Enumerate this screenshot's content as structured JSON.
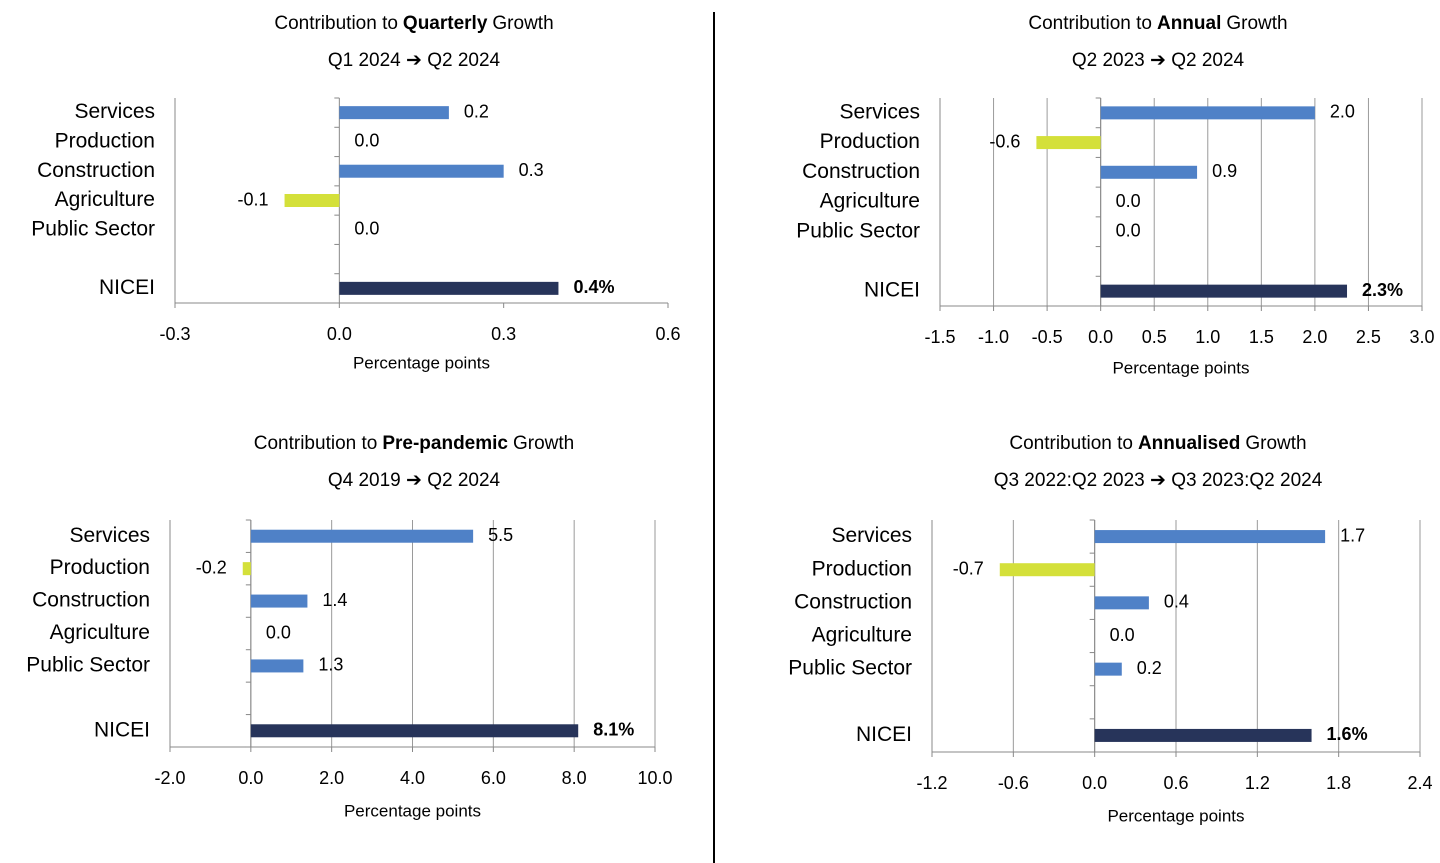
{
  "chart_data": [
    {
      "type": "bar",
      "orientation": "horizontal",
      "title_parts": [
        "Contribution to",
        "Quarterly",
        "Growth"
      ],
      "subtitle": "Q1 2024 ➔ Q2 2024",
      "categories": [
        "Services",
        "Production",
        "Construction",
        "Agriculture",
        "Public Sector",
        null,
        "NICEI"
      ],
      "values": [
        0.2,
        0.0,
        0.3,
        -0.1,
        0.0,
        null,
        0.4
      ],
      "value_labels": [
        "0.2",
        "0.0",
        "0.3",
        "-0.1",
        "0.0",
        null,
        "0.4%"
      ],
      "colors": [
        "#4f81c7",
        "#4f81c7",
        "#4f81c7",
        "#d4e03a",
        "#4f81c7",
        null,
        "#27345a"
      ],
      "xlim": [
        -0.3,
        0.6
      ],
      "xticks": [
        -0.3,
        {
          "value": 0,
          "label": "0.0"
        },
        0.3,
        0.6
      ],
      "xlabel": "Percentage points",
      "grid": false
    },
    {
      "type": "bar",
      "orientation": "horizontal",
      "title_parts": [
        "Contribution to",
        "Annual",
        "Growth"
      ],
      "subtitle": "Q2 2023 ➔ Q2 2024",
      "categories": [
        "Services",
        "Production",
        "Construction",
        "Agriculture",
        "Public Sector",
        null,
        "NICEI"
      ],
      "values": [
        2.0,
        -0.6,
        0.9,
        0.0,
        0.0,
        null,
        2.3
      ],
      "value_labels": [
        "2.0",
        "-0.6",
        "0.9",
        "0.0",
        "0.0",
        null,
        "2.3%"
      ],
      "colors": [
        "#4f81c7",
        "#d4e03a",
        "#4f81c7",
        "#4f81c7",
        "#4f81c7",
        null,
        "#27345a"
      ],
      "xlim": [
        -1.5,
        3.0
      ],
      "xticks": [
        -1.5,
        {
          "value": -1,
          "label": "-1.0"
        },
        -0.5,
        {
          "value": 0,
          "label": "0.0"
        },
        0.5,
        {
          "value": 1,
          "label": "1.0"
        },
        1.5,
        {
          "value": 2,
          "label": "2.0"
        },
        2.5,
        {
          "value": 3,
          "label": "3.0"
        }
      ],
      "xlabel": "Percentage points",
      "grid": true
    },
    {
      "type": "bar",
      "orientation": "horizontal",
      "title_parts": [
        "Contribution to",
        "Pre-pandemic",
        "Growth"
      ],
      "subtitle": "Q4 2019 ➔ Q2 2024",
      "categories": [
        "Services",
        "Production",
        "Construction",
        "Agriculture",
        "Public Sector",
        null,
        "NICEI"
      ],
      "values": [
        5.5,
        -0.2,
        1.4,
        0.0,
        1.3,
        null,
        8.1
      ],
      "value_labels": [
        "5.5",
        "-0.2",
        "1.4",
        "0.0",
        "1.3",
        null,
        "8.1%"
      ],
      "colors": [
        "#4f81c7",
        "#d4e03a",
        "#4f81c7",
        "#4f81c7",
        "#4f81c7",
        null,
        "#27345a"
      ],
      "xlim": [
        -2,
        10
      ],
      "xticks": [
        {
          "value": -2,
          "label": "-2.0"
        },
        {
          "value": 0,
          "label": "0.0"
        },
        {
          "value": 2,
          "label": "2.0"
        },
        {
          "value": 4,
          "label": "4.0"
        },
        {
          "value": 6,
          "label": "6.0"
        },
        {
          "value": 8,
          "label": "8.0"
        },
        {
          "value": 10,
          "label": "10.0"
        }
      ],
      "xlabel": "Percentage points",
      "grid": true
    },
    {
      "type": "bar",
      "orientation": "horizontal",
      "title_parts": [
        "Contribution to",
        "Annualised",
        "Growth"
      ],
      "subtitle": "Q3 2022:Q2 2023 ➔ Q3 2023:Q2 2024",
      "categories": [
        "Services",
        "Production",
        "Construction",
        "Agriculture",
        "Public Sector",
        null,
        "NICEI"
      ],
      "values": [
        1.7,
        -0.7,
        0.4,
        0.0,
        0.2,
        null,
        1.6
      ],
      "value_labels": [
        "1.7",
        "-0.7",
        "0.4",
        "0.0",
        "0.2",
        null,
        "1.6%"
      ],
      "colors": [
        "#4f81c7",
        "#d4e03a",
        "#4f81c7",
        "#4f81c7",
        "#4f81c7",
        null,
        "#27345a"
      ],
      "xlim": [
        -1.2,
        2.4
      ],
      "xticks": [
        -1.2,
        -0.6,
        {
          "value": 0,
          "label": "0.0"
        },
        0.6,
        1.2,
        1.8,
        2.4
      ],
      "xlabel": "Percentage points",
      "grid": true
    }
  ]
}
